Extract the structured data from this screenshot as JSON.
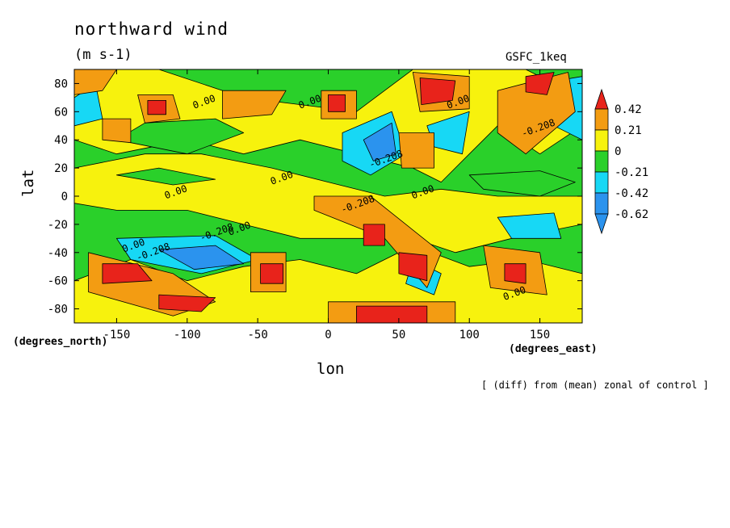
{
  "header": {
    "title": "northward wind",
    "units": "(m s-1)",
    "model": "GSFC_1keq"
  },
  "axes": {
    "x_name": "lon",
    "y_name": "lat",
    "x_units": "(degrees_east)",
    "y_units": "(degrees_north)"
  },
  "note": "[ (diff) from (mean) zonal of control ]",
  "chart_data": {
    "type": "heatmap",
    "title": "northward wind",
    "subtitle": "(m s-1)",
    "xlabel": "lon",
    "ylabel": "lat",
    "xlim": [
      -180,
      180
    ],
    "ylim": [
      -90,
      90
    ],
    "x_ticks": [
      -150,
      -100,
      -50,
      0,
      50,
      100,
      150
    ],
    "x_tick_labels": [
      "-150",
      "-100",
      "-50",
      "0",
      "50",
      "100",
      "150"
    ],
    "y_ticks": [
      -80,
      -60,
      -40,
      -20,
      0,
      20,
      40,
      60,
      80
    ],
    "y_tick_labels": [
      "-80",
      "-60",
      "-40",
      "-20",
      "0",
      "20",
      "40",
      "60",
      "80"
    ],
    "colorbar": {
      "levels": [
        0.42,
        0.21,
        0,
        -0.21,
        -0.42,
        -0.62
      ],
      "labels": [
        "0.42",
        "0.21",
        "0",
        "-0.21",
        "-0.42",
        "-0.62"
      ],
      "colors": [
        "#e8231b",
        "#f39c12",
        "#f7f20d",
        "#2ad02a",
        "#17d8f5",
        "#2b93ee",
        "#2f5fe8"
      ]
    },
    "contour_labels": [
      {
        "text": "0.00",
        "lon": -95,
        "lat": 62
      },
      {
        "text": "0.00",
        "lon": -20,
        "lat": 62
      },
      {
        "text": "0.00",
        "lon": 85,
        "lat": 62
      },
      {
        "text": "-0.208",
        "lon": 30,
        "lat": 20
      },
      {
        "text": "-0.208",
        "lon": 138,
        "lat": 42
      },
      {
        "text": "0.00",
        "lon": -40,
        "lat": 8
      },
      {
        "text": "0.00",
        "lon": -115,
        "lat": -2
      },
      {
        "text": "0.00",
        "lon": 60,
        "lat": -2
      },
      {
        "text": "-0.208",
        "lon": 10,
        "lat": -12
      },
      {
        "text": "0.00",
        "lon": -70,
        "lat": -28
      },
      {
        "text": "-0.208",
        "lon": -90,
        "lat": -32
      },
      {
        "text": "0.00",
        "lon": -145,
        "lat": -40
      },
      {
        "text": "-0.208",
        "lon": -135,
        "lat": -46
      },
      {
        "text": "0.00",
        "lon": 125,
        "lat": -74
      }
    ]
  }
}
